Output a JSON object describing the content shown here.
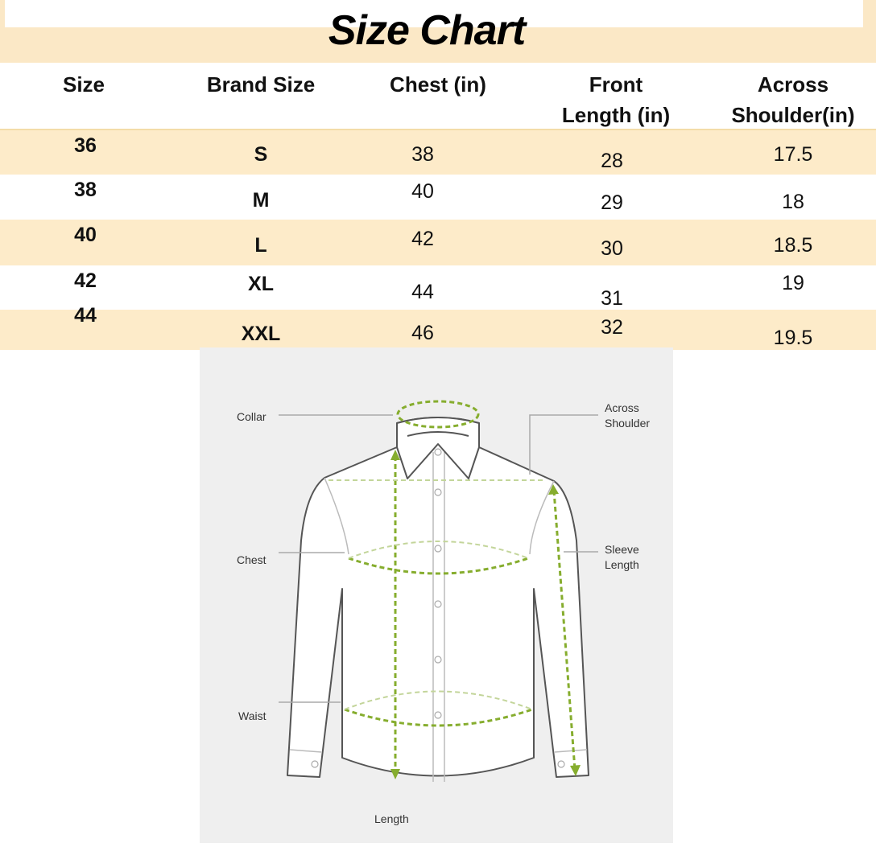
{
  "title": "Size Chart",
  "columns": [
    "Size",
    "Brand Size",
    "Chest (in)",
    "Front Length (in)",
    "Across Shoulder(in)"
  ],
  "column_lines": {
    "front": [
      "Front",
      "Length (in)"
    ],
    "across": [
      "Across",
      "Shoulder(in)"
    ]
  },
  "rows": [
    {
      "size": "36",
      "brand": "S",
      "chest": "38",
      "front": "28",
      "shoulder": "17.5"
    },
    {
      "size": "38",
      "brand": "M",
      "chest": "40",
      "front": "29",
      "shoulder": "18"
    },
    {
      "size": "40",
      "brand": "L",
      "chest": "42",
      "front": "30",
      "shoulder": "18.5"
    },
    {
      "size": "42",
      "brand": "XL",
      "chest": "44",
      "front": "31",
      "shoulder": "19"
    },
    {
      "size": "44",
      "brand": "XXL",
      "chest": "46",
      "front": "32",
      "shoulder": "19.5"
    }
  ],
  "diagram": {
    "labels": {
      "collar": "Collar",
      "chest": "Chest",
      "waist": "Waist",
      "length": "Length",
      "across_1": "Across",
      "across_2": "Shoulder",
      "sleeve_1": "Sleeve",
      "sleeve_2": "Length"
    }
  },
  "colors": {
    "band": "#fbe8c6",
    "measure": "#86ad2e"
  }
}
